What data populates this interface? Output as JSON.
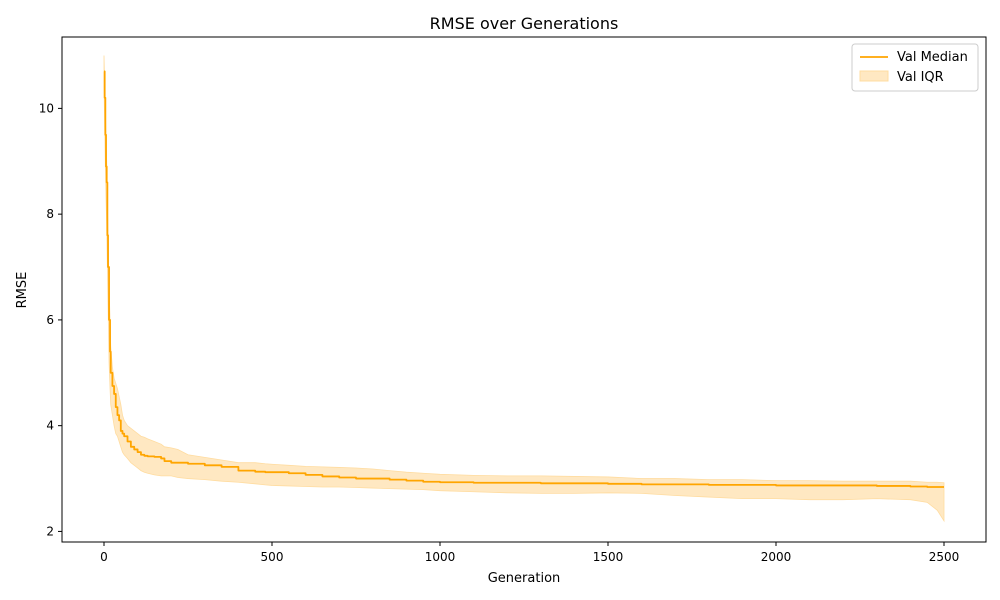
{
  "chart_data": {
    "type": "line",
    "title": "RMSE over Generations",
    "xlabel": "Generation",
    "ylabel": "RMSE",
    "xlim": [
      -125,
      2625
    ],
    "ylim": [
      1.8,
      11.35
    ],
    "xticks": [
      0,
      500,
      1000,
      1500,
      2000,
      2500
    ],
    "yticks": [
      2,
      4,
      6,
      8,
      10
    ],
    "legend_position": "top-right",
    "grid": false,
    "colors": {
      "median": "#ffa500",
      "iqr_fill": "#ffe8c2",
      "iqr_edge": "#ffdca0"
    },
    "series": [
      {
        "name": "Val Median",
        "kind": "line",
        "x": [
          0,
          2,
          4,
          6,
          8,
          10,
          12,
          15,
          18,
          20,
          25,
          30,
          35,
          40,
          45,
          50,
          55,
          60,
          70,
          80,
          90,
          100,
          110,
          120,
          130,
          150,
          170,
          180,
          200,
          220,
          250,
          300,
          350,
          400,
          450,
          480,
          500,
          550,
          600,
          650,
          700,
          750,
          800,
          850,
          900,
          950,
          1000,
          1100,
          1200,
          1300,
          1400,
          1500,
          1600,
          1700,
          1800,
          1900,
          2000,
          2100,
          2200,
          2300,
          2400,
          2450,
          2500
        ],
        "y": [
          10.7,
          10.2,
          9.5,
          8.9,
          8.6,
          7.6,
          7.0,
          6.0,
          5.4,
          5.0,
          4.75,
          4.6,
          4.35,
          4.2,
          4.1,
          3.9,
          3.85,
          3.8,
          3.7,
          3.6,
          3.55,
          3.5,
          3.45,
          3.43,
          3.42,
          3.41,
          3.38,
          3.33,
          3.3,
          3.3,
          3.28,
          3.25,
          3.22,
          3.15,
          3.13,
          3.12,
          3.12,
          3.1,
          3.07,
          3.04,
          3.02,
          3.0,
          3.0,
          2.98,
          2.96,
          2.94,
          2.93,
          2.92,
          2.92,
          2.91,
          2.91,
          2.9,
          2.89,
          2.89,
          2.88,
          2.88,
          2.87,
          2.87,
          2.87,
          2.86,
          2.85,
          2.84,
          2.84
        ]
      },
      {
        "name": "Val IQR",
        "kind": "band",
        "x": [
          0,
          2,
          4,
          6,
          8,
          10,
          12,
          15,
          18,
          20,
          25,
          30,
          35,
          40,
          45,
          50,
          55,
          60,
          70,
          80,
          90,
          100,
          110,
          120,
          130,
          150,
          170,
          180,
          200,
          220,
          250,
          300,
          350,
          400,
          450,
          480,
          500,
          550,
          600,
          650,
          700,
          750,
          800,
          850,
          900,
          950,
          1000,
          1100,
          1200,
          1300,
          1400,
          1500,
          1600,
          1700,
          1800,
          1900,
          2000,
          2100,
          2200,
          2300,
          2400,
          2450,
          2480,
          2500
        ],
        "low": [
          10.4,
          9.7,
          8.9,
          8.3,
          7.8,
          7.0,
          6.3,
          5.2,
          4.7,
          4.4,
          4.2,
          4.0,
          3.85,
          3.8,
          3.7,
          3.6,
          3.5,
          3.45,
          3.38,
          3.3,
          3.25,
          3.2,
          3.15,
          3.12,
          3.1,
          3.07,
          3.05,
          3.05,
          3.05,
          3.02,
          3.0,
          2.98,
          2.95,
          2.93,
          2.9,
          2.88,
          2.87,
          2.86,
          2.85,
          2.84,
          2.84,
          2.83,
          2.82,
          2.81,
          2.8,
          2.79,
          2.77,
          2.75,
          2.73,
          2.72,
          2.72,
          2.73,
          2.72,
          2.68,
          2.65,
          2.62,
          2.62,
          2.6,
          2.6,
          2.62,
          2.6,
          2.55,
          2.4,
          2.2
        ],
        "high": [
          11.0,
          10.5,
          10.0,
          9.4,
          9.0,
          8.2,
          7.6,
          6.6,
          6.0,
          5.5,
          5.1,
          4.9,
          4.8,
          4.7,
          4.55,
          4.4,
          4.2,
          4.1,
          4.0,
          3.95,
          3.9,
          3.85,
          3.8,
          3.78,
          3.75,
          3.7,
          3.65,
          3.6,
          3.58,
          3.55,
          3.45,
          3.4,
          3.35,
          3.3,
          3.3,
          3.28,
          3.27,
          3.25,
          3.23,
          3.22,
          3.21,
          3.2,
          3.18,
          3.15,
          3.12,
          3.1,
          3.08,
          3.06,
          3.05,
          3.05,
          3.04,
          3.03,
          3.0,
          3.0,
          2.98,
          2.98,
          2.96,
          2.96,
          2.95,
          2.95,
          2.95,
          2.93,
          2.93,
          2.92
        ]
      }
    ]
  }
}
